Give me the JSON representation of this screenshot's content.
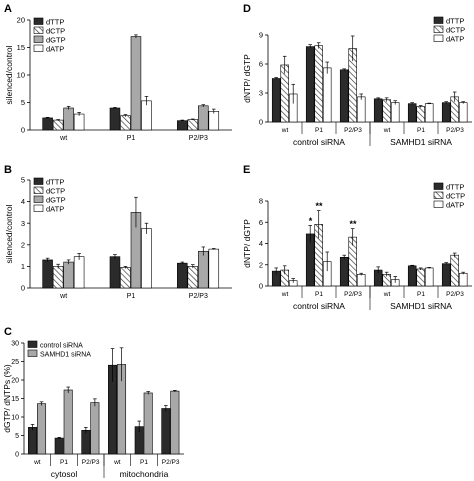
{
  "chart_data": [
    {
      "id": "A",
      "type": "bar",
      "panel_label": "A",
      "ylabel": "silenced/control",
      "ylim": [
        0,
        20
      ],
      "yticks": [
        0,
        5,
        10,
        15,
        20
      ],
      "categories": [
        "wt",
        "P1",
        "P2/P3"
      ],
      "group_labels": [],
      "legend": [
        "dTTP",
        "dCTP",
        "dGTP",
        "dATP"
      ],
      "legend_position": "top-left",
      "series": [
        {
          "name": "dTTP",
          "values": [
            2.2,
            4.0,
            1.7
          ],
          "errors": [
            0.1,
            0.1,
            0.1
          ],
          "style": "black"
        },
        {
          "name": "dCTP",
          "values": [
            1.8,
            2.6,
            1.9
          ],
          "errors": [
            0.1,
            0.2,
            0.1
          ],
          "style": "hatch"
        },
        {
          "name": "dGTP",
          "values": [
            4.0,
            17.0,
            4.4
          ],
          "errors": [
            0.3,
            0.3,
            0.2
          ],
          "style": "gray"
        },
        {
          "name": "dATP",
          "values": [
            2.9,
            5.3,
            3.4
          ],
          "errors": [
            0.3,
            0.8,
            0.4
          ],
          "style": "white"
        }
      ],
      "annotations": []
    },
    {
      "id": "B",
      "type": "bar",
      "panel_label": "B",
      "ylabel": "silenced/control",
      "ylim": [
        0,
        5
      ],
      "yticks": [
        0,
        1,
        2,
        3,
        4,
        5
      ],
      "categories": [
        "wt",
        "P1",
        "P2/P3"
      ],
      "group_labels": [],
      "legend": [
        "dTTP",
        "dCTP",
        "dGTP",
        "dATP"
      ],
      "legend_position": "top-left",
      "series": [
        {
          "name": "dTTP",
          "values": [
            1.3,
            1.45,
            1.15
          ],
          "errors": [
            0.08,
            0.1,
            0.05
          ],
          "style": "black"
        },
        {
          "name": "dCTP",
          "values": [
            1.0,
            0.95,
            1.0
          ],
          "errors": [
            0.1,
            0.05,
            0.08
          ],
          "style": "hatch"
        },
        {
          "name": "dGTP",
          "values": [
            1.2,
            3.5,
            1.7
          ],
          "errors": [
            0.1,
            0.7,
            0.2
          ],
          "style": "gray"
        },
        {
          "name": "dATP",
          "values": [
            1.45,
            2.75,
            1.8
          ],
          "errors": [
            0.15,
            0.25,
            0.03
          ],
          "style": "white"
        }
      ],
      "annotations": []
    },
    {
      "id": "C",
      "type": "bar",
      "panel_label": "C",
      "ylabel": "dGTP/ dNTPs (%)",
      "ylim": [
        0,
        30
      ],
      "yticks": [
        0,
        5,
        10,
        15,
        20,
        25,
        30
      ],
      "categories": [
        "wt",
        "P1",
        "P2/P3",
        "wt",
        "P1",
        "P2/P3"
      ],
      "group_labels": [
        {
          "label": "cytosol",
          "from": 0,
          "to": 2
        },
        {
          "label": "mitochondria",
          "from": 3,
          "to": 5
        }
      ],
      "legend": [
        "control siRNA",
        "SAMHD1 siRNA"
      ],
      "legend_position": "top-left",
      "series": [
        {
          "name": "control siRNA",
          "values": [
            7.2,
            4.3,
            6.4,
            24.0,
            7.4,
            12.3
          ],
          "errors": [
            0.8,
            0.2,
            0.8,
            4.5,
            1.5,
            0.8
          ],
          "style": "black"
        },
        {
          "name": "SAMHD1 siRNA",
          "values": [
            13.6,
            17.3,
            13.9,
            24.2,
            16.5,
            17.0
          ],
          "errors": [
            0.5,
            0.8,
            1.0,
            4.5,
            0.4,
            0.2
          ],
          "style": "gray"
        }
      ],
      "annotations": []
    },
    {
      "id": "D",
      "type": "bar",
      "panel_label": "D",
      "ylabel": "dNTP/ dGTP",
      "ylim": [
        0,
        9
      ],
      "yticks": [
        0,
        3,
        6,
        9
      ],
      "categories": [
        "wt",
        "P1",
        "P2/P3",
        "wt",
        "P1",
        "P2/P3"
      ],
      "group_labels": [
        {
          "label": "control siRNA",
          "from": 0,
          "to": 2
        },
        {
          "label": "SAMHD1 siRNA",
          "from": 3,
          "to": 5
        }
      ],
      "legend": [
        "dTTP",
        "dCTP",
        "dATP"
      ],
      "legend_position": "top-right",
      "series": [
        {
          "name": "dTTP",
          "values": [
            4.5,
            7.8,
            5.4,
            2.4,
            1.9,
            2.0
          ],
          "errors": [
            0.1,
            0.2,
            0.1,
            0.1,
            0.1,
            0.1
          ],
          "style": "black"
        },
        {
          "name": "dCTP",
          "values": [
            5.9,
            7.9,
            7.6,
            2.3,
            1.6,
            2.6
          ],
          "errors": [
            0.9,
            0.3,
            1.3,
            0.2,
            0.1,
            0.5
          ],
          "style": "hatch"
        },
        {
          "name": "dATP",
          "values": [
            2.9,
            5.6,
            2.6,
            2.0,
            1.9,
            2.0
          ],
          "errors": [
            1.0,
            0.6,
            0.3,
            0.2,
            0.05,
            0.1
          ],
          "style": "white"
        }
      ],
      "annotations": []
    },
    {
      "id": "E",
      "type": "bar",
      "panel_label": "E",
      "ylabel": "dNTP/ dGTP",
      "ylim": [
        0,
        8
      ],
      "yticks": [
        0,
        2,
        4,
        6,
        8
      ],
      "categories": [
        "wt",
        "P1",
        "P2/P3",
        "wt",
        "P1",
        "P2/P3"
      ],
      "group_labels": [
        {
          "label": "control siRNA",
          "from": 0,
          "to": 2
        },
        {
          "label": "SAMHD1 siRNA",
          "from": 3,
          "to": 5
        }
      ],
      "legend": [
        "dTTP",
        "dCTP",
        "dATP"
      ],
      "legend_position": "top-right",
      "series": [
        {
          "name": "dTTP",
          "values": [
            1.4,
            4.9,
            2.7,
            1.5,
            1.9,
            2.1
          ],
          "errors": [
            0.3,
            0.8,
            0.2,
            0.3,
            0.05,
            0.1
          ],
          "style": "black"
        },
        {
          "name": "dCTP",
          "values": [
            1.5,
            5.8,
            4.6,
            1.1,
            1.6,
            2.9
          ],
          "errors": [
            0.4,
            1.3,
            0.8,
            0.2,
            0.1,
            0.2
          ],
          "style": "hatch"
        },
        {
          "name": "dATP",
          "values": [
            0.5,
            2.3,
            1.1,
            0.6,
            1.7,
            1.2
          ],
          "errors": [
            0.2,
            0.9,
            0.1,
            0.3,
            0.05,
            0.1
          ],
          "style": "white"
        }
      ],
      "annotations": [
        {
          "text": "*",
          "category": 1,
          "series": 0
        },
        {
          "text": "**",
          "category": 1,
          "series": 1
        },
        {
          "text": "**",
          "category": 2,
          "series": 1
        }
      ]
    }
  ]
}
